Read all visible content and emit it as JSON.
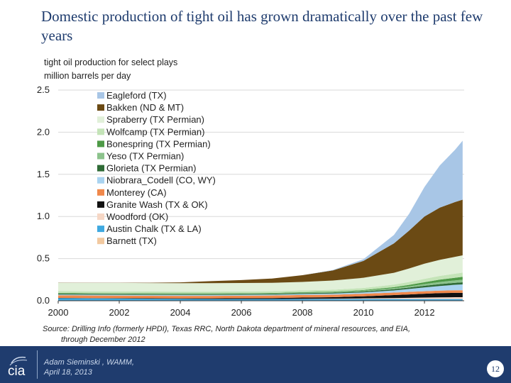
{
  "slide": {
    "title": "Domestic production of tight oil has grown dramatically over the past few years",
    "subtitle_line1": "tight oil production for select plays",
    "subtitle_line2": "million barrels per day",
    "source_line1": "Source: Drilling Info (formerly HPDI), Texas RRC, North Dakota department of mineral resources, and EIA,",
    "source_line2": "through December 2012",
    "presenter_name": "Adam Sieminski , WAMM,",
    "presenter_date": "April 18, 2013",
    "logo_text": "cia",
    "page_number": "12"
  },
  "chart_data": {
    "type": "area",
    "stacked": true,
    "title": "tight oil production for select plays",
    "ylabel": "million barrels per day",
    "xlim": [
      2000,
      2013.3
    ],
    "ylim": [
      0,
      2.5
    ],
    "yticks": [
      "0.0",
      "0.5",
      "1.0",
      "1.5",
      "2.0",
      "2.5"
    ],
    "xticks": [
      "2000",
      "2002",
      "2004",
      "2006",
      "2008",
      "2010",
      "2012"
    ],
    "grid": true,
    "legend_position": "top-left",
    "x": [
      2000,
      2001,
      2002,
      2003,
      2004,
      2005,
      2006,
      2007,
      2008,
      2009,
      2010,
      2011,
      2011.5,
      2012,
      2012.5,
      2013,
      2013.25
    ],
    "series": [
      {
        "name": "Barnett (TX)",
        "color": "#f2c9a0",
        "values": [
          0,
          0,
          0,
          0,
          0,
          0,
          0,
          0,
          0,
          0,
          0,
          0,
          0,
          0,
          0,
          0,
          0
        ]
      },
      {
        "name": "Austin Chalk (TX & LA)",
        "color": "#3fa9e0",
        "values": [
          0.03,
          0.028,
          0.026,
          0.024,
          0.022,
          0.02,
          0.02,
          0.02,
          0.02,
          0.02,
          0.02,
          0.02,
          0.02,
          0.02,
          0.02,
          0.02,
          0.02
        ]
      },
      {
        "name": "Woodford (OK)",
        "color": "#f6d7c5",
        "values": [
          0,
          0,
          0,
          0,
          0,
          0,
          0,
          0,
          0.002,
          0.004,
          0.008,
          0.012,
          0.015,
          0.018,
          0.02,
          0.022,
          0.022
        ]
      },
      {
        "name": "Granite Wash (TX & OK)",
        "color": "#111111",
        "values": [
          0.004,
          0.004,
          0.005,
          0.005,
          0.006,
          0.008,
          0.01,
          0.012,
          0.016,
          0.018,
          0.025,
          0.035,
          0.04,
          0.045,
          0.05,
          0.052,
          0.052
        ]
      },
      {
        "name": "Monterey (CA)",
        "color": "#f0884b",
        "values": [
          0.03,
          0.03,
          0.03,
          0.03,
          0.03,
          0.03,
          0.03,
          0.03,
          0.03,
          0.03,
          0.03,
          0.03,
          0.03,
          0.03,
          0.03,
          0.03,
          0.03
        ]
      },
      {
        "name": "Niobrara_Codell (CO, WY)",
        "color": "#a9d3f0",
        "values": [
          0.01,
          0.01,
          0.01,
          0.01,
          0.01,
          0.01,
          0.01,
          0.011,
          0.012,
          0.013,
          0.016,
          0.025,
          0.035,
          0.045,
          0.055,
          0.065,
          0.07
        ]
      },
      {
        "name": "Glorieta (TX Permian)",
        "color": "#2f6b36",
        "values": [
          0.01,
          0.01,
          0.01,
          0.01,
          0.01,
          0.01,
          0.01,
          0.01,
          0.01,
          0.011,
          0.012,
          0.015,
          0.017,
          0.02,
          0.022,
          0.024,
          0.025
        ]
      },
      {
        "name": "Yeso (TX Permian)",
        "color": "#8cc38c",
        "values": [
          0.005,
          0.005,
          0.005,
          0.005,
          0.005,
          0.005,
          0.005,
          0.005,
          0.006,
          0.006,
          0.008,
          0.012,
          0.015,
          0.02,
          0.025,
          0.028,
          0.03
        ]
      },
      {
        "name": "Bonespring (TX Permian)",
        "color": "#4e9a47",
        "values": [
          0.005,
          0.005,
          0.005,
          0.005,
          0.005,
          0.005,
          0.005,
          0.005,
          0.006,
          0.006,
          0.008,
          0.012,
          0.016,
          0.022,
          0.028,
          0.032,
          0.035
        ]
      },
      {
        "name": "Wolfcamp (TX Permian)",
        "color": "#c4e4b8",
        "values": [
          0.02,
          0.02,
          0.02,
          0.02,
          0.02,
          0.02,
          0.02,
          0.02,
          0.021,
          0.022,
          0.025,
          0.03,
          0.035,
          0.04,
          0.045,
          0.048,
          0.05
        ]
      },
      {
        "name": "Spraberry (TX Permian)",
        "color": "#e1f0d9",
        "values": [
          0.1,
          0.1,
          0.1,
          0.1,
          0.1,
          0.1,
          0.1,
          0.1,
          0.1,
          0.11,
          0.12,
          0.14,
          0.16,
          0.18,
          0.19,
          0.2,
          0.205
        ]
      },
      {
        "name": "Bakken (ND & MT)",
        "color": "#6b4a14",
        "values": [
          0.002,
          0.002,
          0.003,
          0.005,
          0.01,
          0.025,
          0.035,
          0.05,
          0.08,
          0.12,
          0.2,
          0.35,
          0.45,
          0.56,
          0.62,
          0.65,
          0.66
        ]
      },
      {
        "name": "Eagleford (TX)",
        "color": "#a8c6e6",
        "values": [
          0,
          0,
          0,
          0,
          0,
          0,
          0,
          0,
          0,
          0.005,
          0.02,
          0.1,
          0.2,
          0.35,
          0.5,
          0.62,
          0.7
        ]
      }
    ]
  }
}
